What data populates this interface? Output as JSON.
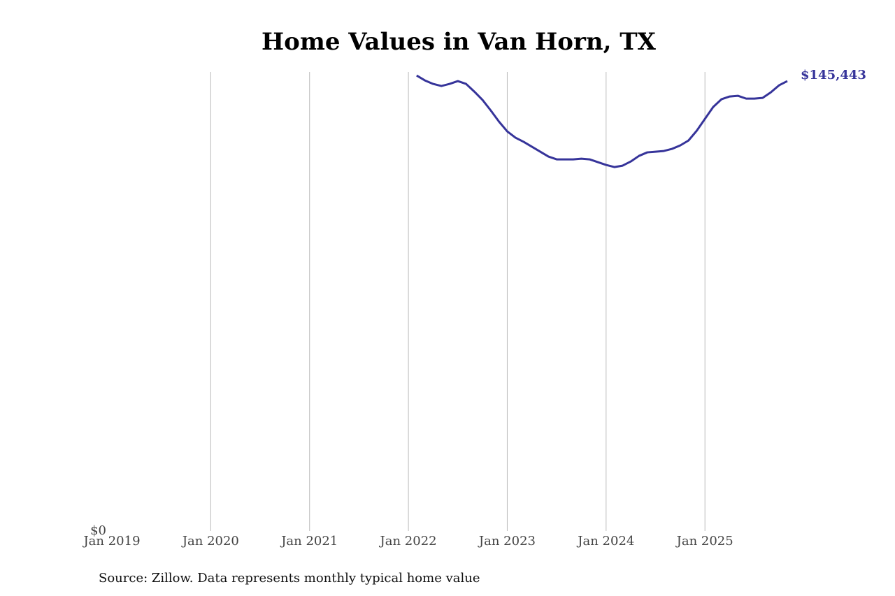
{
  "chart_data": {
    "type": "line",
    "title": "Home Values in Van Horn, TX",
    "source": "Source: Zillow. Data represents monthly typical home value",
    "x": [
      "2022-02",
      "2022-03",
      "2022-04",
      "2022-05",
      "2022-06",
      "2022-07",
      "2022-08",
      "2022-09",
      "2022-10",
      "2022-11",
      "2022-12",
      "2023-01",
      "2023-02",
      "2023-03",
      "2023-04",
      "2023-05",
      "2023-06",
      "2023-07",
      "2023-08",
      "2023-09",
      "2023-10",
      "2023-11",
      "2023-12",
      "2024-01",
      "2024-02",
      "2024-03",
      "2024-04",
      "2024-05",
      "2024-06",
      "2024-07",
      "2024-08",
      "2024-09",
      "2024-10",
      "2024-11",
      "2024-12",
      "2025-01",
      "2025-02",
      "2025-03",
      "2025-04",
      "2025-05",
      "2025-06",
      "2025-07",
      "2025-08",
      "2025-09",
      "2025-10",
      "2025-11"
    ],
    "series": [
      {
        "name": "Home value",
        "color": "#36349a",
        "values": [
          147250,
          145670,
          144540,
          143860,
          144540,
          145440,
          144540,
          142050,
          139340,
          135950,
          132340,
          129180,
          127150,
          125790,
          124210,
          122630,
          121050,
          120150,
          120150,
          120150,
          120370,
          120150,
          119240,
          118340,
          117660,
          118110,
          119470,
          121280,
          122410,
          122630,
          122860,
          123540,
          124660,
          126240,
          129400,
          133240,
          137080,
          139570,
          140470,
          140700,
          139790,
          139790,
          140020,
          141830,
          144090,
          145443
        ],
        "value_labels": [
          null,
          null,
          null,
          null,
          null,
          null,
          null,
          null,
          null,
          null,
          null,
          null,
          null,
          null,
          null,
          null,
          null,
          null,
          null,
          null,
          null,
          null,
          null,
          null,
          null,
          null,
          null,
          null,
          null,
          null,
          null,
          null,
          null,
          null,
          null,
          null,
          null,
          null,
          null,
          null,
          null,
          null,
          null,
          null,
          null,
          "$145,443"
        ]
      }
    ],
    "xlim": [
      "2019-01",
      "2025-11"
    ],
    "xticks": [
      {
        "value": "2019-01",
        "label": "Jan 2019"
      },
      {
        "value": "2020-01",
        "label": "Jan 2020"
      },
      {
        "value": "2021-01",
        "label": "Jan 2021"
      },
      {
        "value": "2022-01",
        "label": "Jan 2022"
      },
      {
        "value": "2023-01",
        "label": "Jan 2023"
      },
      {
        "value": "2024-01",
        "label": "Jan 2024"
      },
      {
        "value": "2025-01",
        "label": "Jan 2025"
      }
    ],
    "ylim": [
      0,
      148400
    ],
    "yticks": [
      {
        "value": 0,
        "label": "$0"
      }
    ],
    "grid": true
  }
}
